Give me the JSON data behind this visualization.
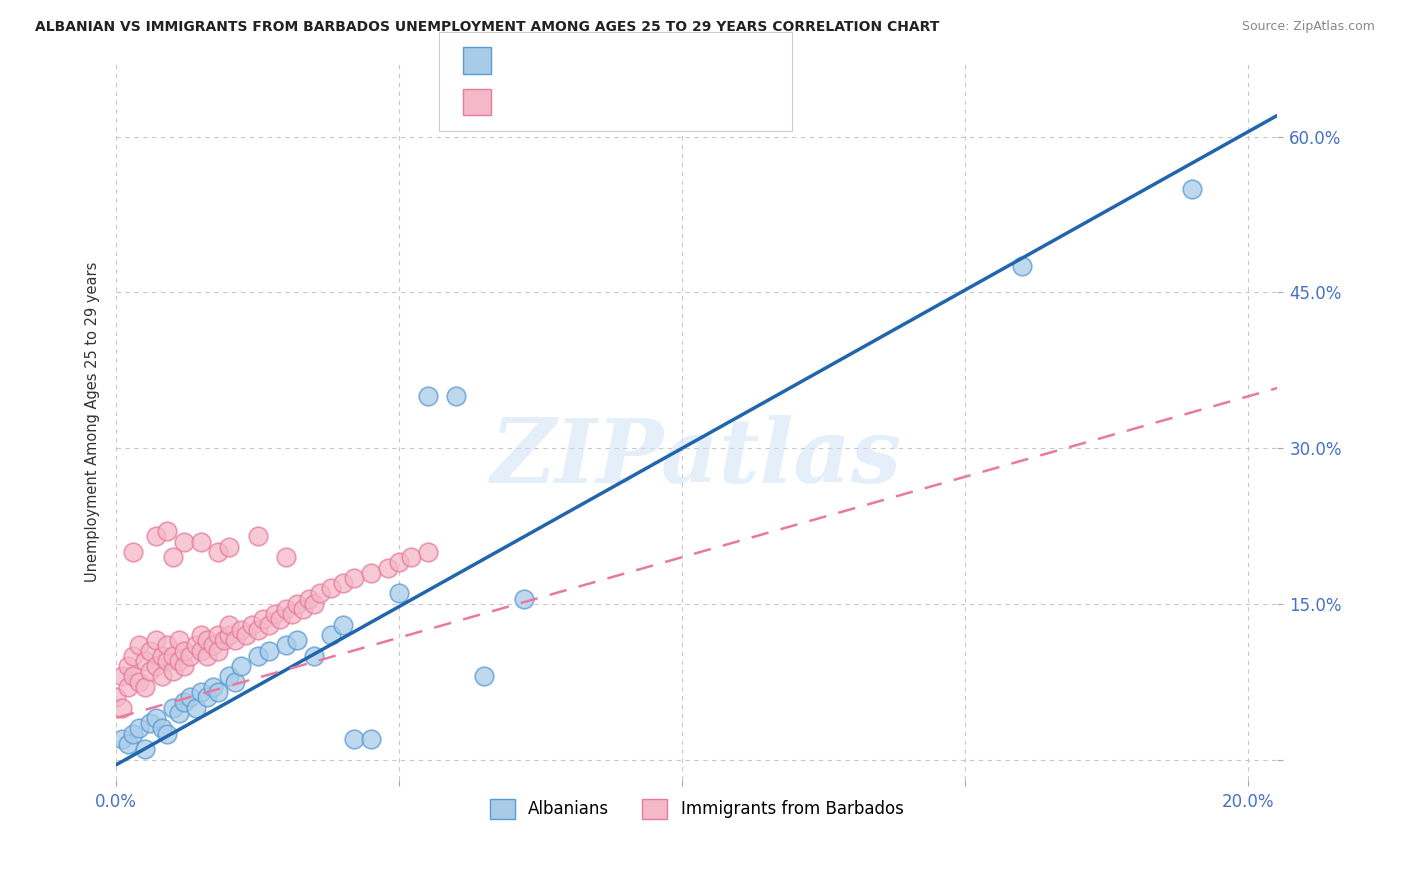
{
  "title": "ALBANIAN VS IMMIGRANTS FROM BARBADOS UNEMPLOYMENT AMONG AGES 25 TO 29 YEARS CORRELATION CHART",
  "source": "Source: ZipAtlas.com",
  "ylabel": "Unemployment Among Ages 25 to 29 years",
  "xlim": [
    0.0,
    0.205
  ],
  "ylim": [
    -0.02,
    0.67
  ],
  "xticks": [
    0.0,
    0.05,
    0.1,
    0.15,
    0.2
  ],
  "xtick_labels": [
    "0.0%",
    "",
    "",
    "",
    "20.0%"
  ],
  "ytick_positions": [
    0.0,
    0.15,
    0.3,
    0.45,
    0.6
  ],
  "ytick_labels_right": [
    "",
    "15.0%",
    "30.0%",
    "45.0%",
    "60.0%"
  ],
  "watermark": "ZIPatlas",
  "blue_face": "#a8cce8",
  "blue_edge": "#5b9bd5",
  "pink_face": "#f4b8c8",
  "pink_edge": "#e87aa0",
  "blue_line": "#2166ac",
  "pink_line": "#e87aa0",
  "alb_slope": 3.05,
  "alb_intercept": -0.005,
  "barb_slope": 1.55,
  "barb_intercept": 0.04,
  "albanians_x": [
    0.001,
    0.002,
    0.003,
    0.004,
    0.005,
    0.006,
    0.007,
    0.008,
    0.009,
    0.01,
    0.011,
    0.012,
    0.013,
    0.014,
    0.015,
    0.016,
    0.017,
    0.018,
    0.02,
    0.021,
    0.022,
    0.025,
    0.027,
    0.03,
    0.032,
    0.035,
    0.038,
    0.04,
    0.042,
    0.045,
    0.05,
    0.055,
    0.06,
    0.065,
    0.072,
    0.16,
    0.19
  ],
  "albanians_y": [
    0.02,
    0.015,
    0.025,
    0.03,
    0.01,
    0.035,
    0.04,
    0.03,
    0.025,
    0.05,
    0.045,
    0.055,
    0.06,
    0.05,
    0.065,
    0.06,
    0.07,
    0.065,
    0.08,
    0.075,
    0.09,
    0.1,
    0.105,
    0.11,
    0.115,
    0.1,
    0.12,
    0.13,
    0.02,
    0.02,
    0.16,
    0.35,
    0.35,
    0.08,
    0.155,
    0.475,
    0.55
  ],
  "barbados_x": [
    0.0,
    0.001,
    0.001,
    0.002,
    0.002,
    0.003,
    0.003,
    0.004,
    0.004,
    0.005,
    0.005,
    0.006,
    0.006,
    0.007,
    0.007,
    0.008,
    0.008,
    0.009,
    0.009,
    0.01,
    0.01,
    0.011,
    0.011,
    0.012,
    0.012,
    0.013,
    0.014,
    0.015,
    0.015,
    0.016,
    0.016,
    0.017,
    0.018,
    0.018,
    0.019,
    0.02,
    0.02,
    0.021,
    0.022,
    0.023,
    0.024,
    0.025,
    0.026,
    0.027,
    0.028,
    0.029,
    0.03,
    0.031,
    0.032,
    0.033,
    0.034,
    0.035,
    0.036,
    0.038,
    0.04,
    0.042,
    0.045,
    0.048,
    0.05,
    0.052,
    0.055,
    0.003,
    0.007,
    0.012,
    0.009,
    0.018,
    0.025,
    0.03,
    0.01,
    0.02,
    0.015
  ],
  "barbados_y": [
    0.06,
    0.08,
    0.05,
    0.07,
    0.09,
    0.08,
    0.1,
    0.075,
    0.11,
    0.07,
    0.095,
    0.085,
    0.105,
    0.09,
    0.115,
    0.08,
    0.1,
    0.095,
    0.11,
    0.085,
    0.1,
    0.095,
    0.115,
    0.09,
    0.105,
    0.1,
    0.11,
    0.105,
    0.12,
    0.1,
    0.115,
    0.11,
    0.12,
    0.105,
    0.115,
    0.12,
    0.13,
    0.115,
    0.125,
    0.12,
    0.13,
    0.125,
    0.135,
    0.13,
    0.14,
    0.135,
    0.145,
    0.14,
    0.15,
    0.145,
    0.155,
    0.15,
    0.16,
    0.165,
    0.17,
    0.175,
    0.18,
    0.185,
    0.19,
    0.195,
    0.2,
    0.2,
    0.215,
    0.21,
    0.22,
    0.2,
    0.215,
    0.195,
    0.195,
    0.205,
    0.21
  ]
}
